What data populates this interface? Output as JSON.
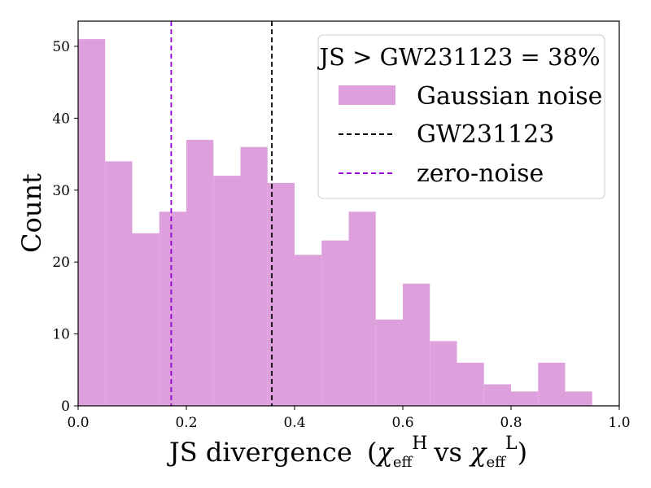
{
  "chart_data": {
    "type": "bar",
    "title": "",
    "xlabel": "JS divergence",
    "xlabel_math": {
      "open": "(",
      "chi1": "χ",
      "sub1": "eff",
      "sup1": "H",
      "vs": "vs",
      "chi2": "χ",
      "sub2": "eff",
      "sup2": "L",
      "close": ")"
    },
    "ylabel": "Count",
    "xlim": [
      0.0,
      1.0
    ],
    "ylim": [
      0,
      53.5
    ],
    "xticks": [
      0.0,
      0.2,
      0.4,
      0.6,
      0.8,
      1.0
    ],
    "xtick_labels": [
      "0.0",
      "0.2",
      "0.4",
      "0.6",
      "0.8",
      "1.0"
    ],
    "yticks": [
      0,
      10,
      20,
      30,
      40,
      50
    ],
    "ytick_labels": [
      "0",
      "10",
      "20",
      "30",
      "40",
      "50"
    ],
    "bin_edges": [
      0.0,
      0.05,
      0.1,
      0.15,
      0.2,
      0.25,
      0.3,
      0.35,
      0.4,
      0.45,
      0.5,
      0.55,
      0.6,
      0.65,
      0.7,
      0.75,
      0.8,
      0.85,
      0.9,
      0.95
    ],
    "bin_width": 0.05,
    "values": [
      51,
      34,
      24,
      27,
      37,
      32,
      36,
      31,
      21,
      23,
      27,
      12,
      17,
      9,
      6,
      3,
      2,
      6,
      2
    ],
    "series": [
      {
        "name": "Gaussian noise",
        "kind": "histogram",
        "color": "#dda0dd"
      }
    ],
    "vlines": [
      {
        "name": "GW231123",
        "x": 0.358,
        "color": "#000000",
        "style": "dashed"
      },
      {
        "name": "zero-noise",
        "x": 0.172,
        "color": "#9400d3",
        "style": "dashed"
      }
    ],
    "legend": {
      "title": "JS > GW231123 = 38%",
      "placement": "top-right",
      "entries": [
        "Gaussian noise",
        "GW231123",
        "zero-noise"
      ]
    }
  }
}
